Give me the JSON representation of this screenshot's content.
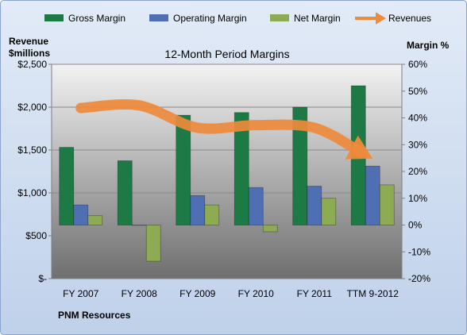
{
  "chart_data": {
    "type": "bar",
    "title": "12-Month Period Margins",
    "company": "PNM Resources",
    "left_axis_label_line1": "Revenue",
    "left_axis_label_line2": "$millions",
    "right_axis_label": "Margin %",
    "categories": [
      "FY 2007",
      "FY 2008",
      "FY 2009",
      "FY 2010",
      "FY 2011",
      "TTM 9-2012"
    ],
    "left_axis": {
      "min": 0,
      "max": 2500,
      "ticks": [
        0,
        500,
        1000,
        1500,
        2000,
        2500
      ],
      "tick_labels": [
        "$-",
        "$500",
        "$1,000",
        "$1,500",
        "$2,000",
        "$2,500"
      ]
    },
    "right_axis": {
      "min": -20,
      "max": 60,
      "ticks": [
        -20,
        -10,
        0,
        10,
        20,
        30,
        40,
        50,
        60
      ],
      "tick_labels": [
        "-20%",
        "-10%",
        "0%",
        "10%",
        "20%",
        "30%",
        "40%",
        "50%",
        "60%"
      ]
    },
    "series": [
      {
        "name": "Gross Margin",
        "axis": "right",
        "kind": "bar",
        "color": "#1e7a45",
        "values": [
          29,
          24,
          41,
          42,
          44,
          52
        ]
      },
      {
        "name": "Operating Margin",
        "axis": "right",
        "kind": "bar",
        "color": "#4f6fb5",
        "values": [
          7.5,
          0,
          11,
          14,
          14.5,
          22
        ]
      },
      {
        "name": "Net Margin",
        "axis": "right",
        "kind": "bar",
        "color": "#8cab52",
        "values": [
          3.5,
          -13.5,
          7.5,
          -2.5,
          10,
          15
        ]
      },
      {
        "name": "Revenues",
        "axis": "left",
        "kind": "line",
        "color": "#ee8a3c",
        "values": [
          1990,
          2020,
          1760,
          1790,
          1760,
          1400
        ]
      }
    ],
    "grid": true,
    "legend_position": "top"
  }
}
